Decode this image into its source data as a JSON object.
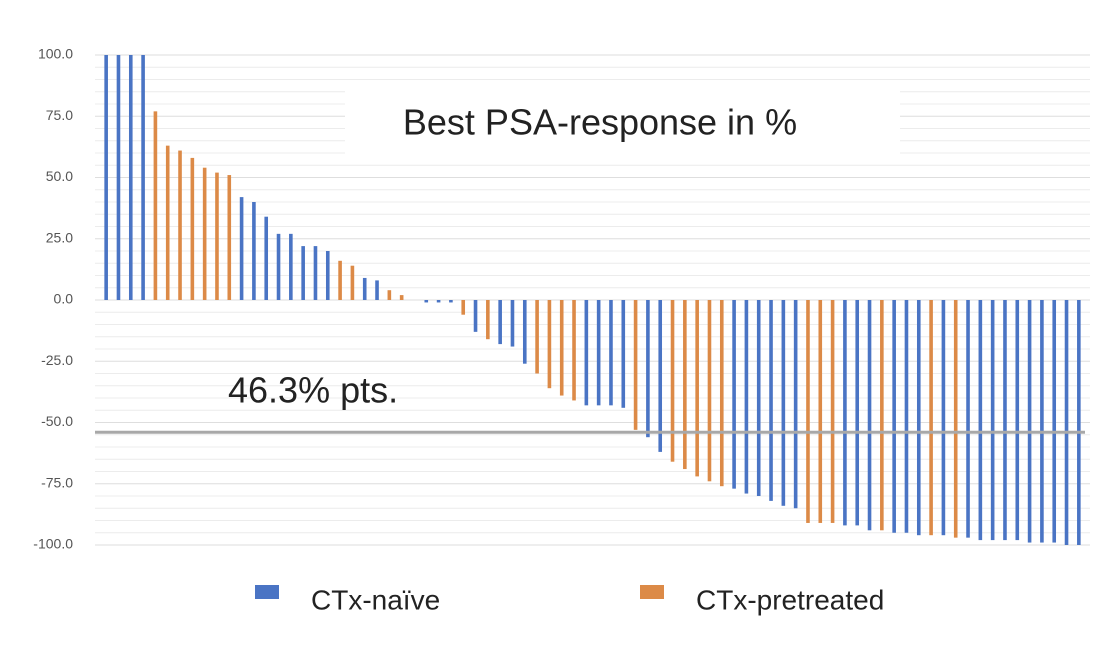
{
  "chart_data": {
    "type": "bar",
    "title": "Best PSA-response in %",
    "annotation": "46.3% pts.",
    "reference_line": -54,
    "legend": "bottom",
    "grid": true,
    "ylim": [
      -100,
      100
    ],
    "yticks": [
      {
        "value": 100,
        "label": "100.0"
      },
      {
        "value": 75,
        "label": "75.0"
      },
      {
        "value": 50,
        "label": "50.0"
      },
      {
        "value": 25,
        "label": "25.0"
      },
      {
        "value": 0,
        "label": "0.0"
      },
      {
        "value": -25,
        "label": "-25.0"
      },
      {
        "value": -50,
        "label": "-50.0"
      },
      {
        "value": -75,
        "label": "-75.0"
      },
      {
        "value": -100,
        "label": "-100.0"
      }
    ],
    "minor_yticks": [
      95,
      90,
      85,
      80,
      70,
      65,
      60,
      55,
      45,
      40,
      35,
      30,
      20,
      15,
      10,
      5,
      -5,
      -10,
      -15,
      -20,
      -30,
      -35,
      -40,
      -45,
      -55,
      -60,
      -65,
      -70,
      -80,
      -85,
      -90,
      -95
    ],
    "series": [
      {
        "name": "CTx-naïve",
        "color": "#4a74c4",
        "values": [
          100,
          100,
          100,
          100,
          null,
          null,
          null,
          null,
          null,
          null,
          null,
          42,
          40,
          34,
          27,
          27,
          22,
          22,
          20,
          null,
          null,
          9,
          8,
          null,
          null,
          0,
          -1,
          -1,
          -1,
          null,
          -13,
          null,
          -18,
          -19,
          -26,
          null,
          null,
          null,
          null,
          -43,
          -43,
          -43,
          -44,
          null,
          -56,
          -62,
          null,
          null,
          null,
          null,
          null,
          -77,
          -79,
          -80,
          -82,
          -84,
          -85,
          null,
          null,
          null,
          -92,
          -92,
          -94,
          null,
          -95,
          -95,
          -96,
          null,
          -96,
          null,
          -97,
          -98,
          -98,
          -98,
          -98,
          -99,
          -99,
          -99,
          -100,
          -100
        ]
      },
      {
        "name": "CTx-pretreated",
        "color": "#dc8a47",
        "values": [
          null,
          null,
          null,
          null,
          77,
          63,
          61,
          58,
          54,
          52,
          51,
          null,
          null,
          null,
          null,
          null,
          null,
          null,
          null,
          16,
          14,
          null,
          null,
          4,
          2,
          null,
          null,
          null,
          null,
          -6,
          null,
          -16,
          null,
          null,
          null,
          -30,
          -36,
          -39,
          -41,
          null,
          null,
          null,
          null,
          -53,
          null,
          null,
          -66,
          -69,
          -72,
          -74,
          -76,
          null,
          null,
          null,
          null,
          null,
          null,
          -91,
          -91,
          -91,
          null,
          null,
          null,
          -94,
          null,
          null,
          null,
          -96,
          null,
          -97,
          null,
          null,
          null,
          null,
          null,
          null,
          null,
          null,
          null,
          null
        ]
      }
    ]
  }
}
